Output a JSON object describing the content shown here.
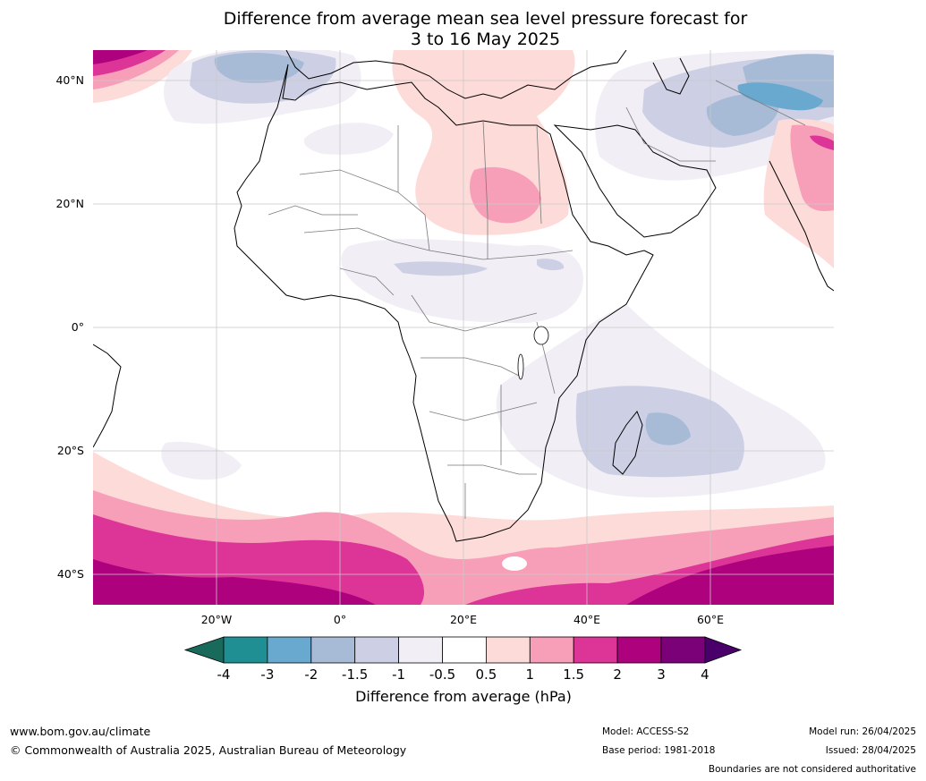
{
  "title_line1": "Difference from average mean sea level pressure forecast for",
  "title_line2": "3 to 16 May 2025",
  "map": {
    "lat_labels": [
      "40°N",
      "20°N",
      "0°",
      "20°S",
      "40°S"
    ],
    "lon_labels": [
      "20°W",
      "0°",
      "20°E",
      "40°E",
      "60°E"
    ]
  },
  "colorbar": {
    "ticks": [
      "-4",
      "-3",
      "-2",
      "-1.5",
      "-1",
      "-0.5",
      "0.5",
      "1",
      "1.5",
      "2",
      "3",
      "4"
    ],
    "colors": [
      "#1a6a5c",
      "#1f8f93",
      "#6aa9cf",
      "#a7bad6",
      "#cdd0e5",
      "#f1eef5",
      "#ffffff",
      "#fddbd9",
      "#f79fb8",
      "#dd3497",
      "#ae017e",
      "#7a0177",
      "#49006a"
    ],
    "label": "Difference from average (hPa)"
  },
  "footer": {
    "website": "www.bom.gov.au/climate",
    "copyright": "© Commonwealth of Australia 2025, Australian Bureau of Meteorology",
    "model": "Model: ACCESS-S2",
    "base_period": "Base period: 1981-2018",
    "model_run": "Model run: 26/04/2025",
    "issued": "Issued: 28/04/2025",
    "disclaimer": "Boundaries are not considered authoritative"
  }
}
